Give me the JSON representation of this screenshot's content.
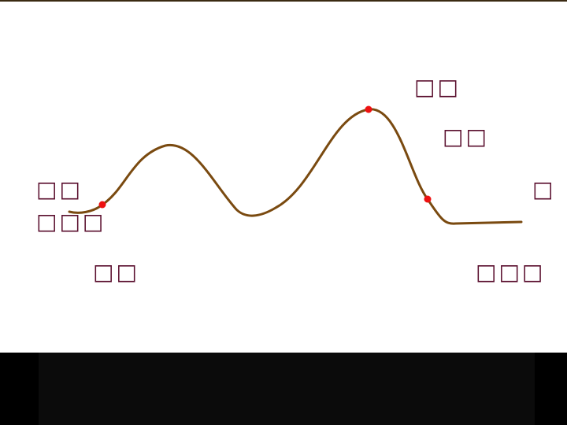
{
  "labels": {
    "left_top": "□□",
    "left_bottom": "□□□",
    "bottom_left": "□□",
    "peak_top": "□□",
    "peak_right": "□□",
    "right_edge": "□",
    "bottom_right": "□□□"
  },
  "colors": {
    "curve": "#7a4a10",
    "marker": "#ee1111",
    "text": "#5a0f2e",
    "background": "#ffffff"
  }
}
